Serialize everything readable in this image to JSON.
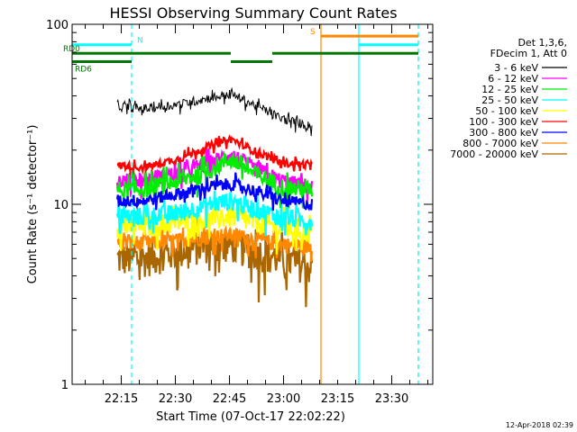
{
  "chart_data": {
    "type": "line",
    "title": "HESSI Observing Summary Count Rates",
    "xlabel": "Start Time (07-Oct-17 22:02:22)",
    "ylabel": "Count Rate (s⁻¹ detector⁻¹)",
    "yscale": "log",
    "ylim": [
      1,
      100
    ],
    "xlim_minutes": [
      0,
      100
    ],
    "ytick_labels": [
      "1",
      "10",
      "100"
    ],
    "xtick_labels": [
      "22:15",
      "22:30",
      "22:45",
      "23:00",
      "23:15",
      "23:30"
    ],
    "xtick_minutes": [
      13.63,
      28.63,
      43.63,
      58.63,
      73.63,
      88.63
    ],
    "data_start_minute": 12.5,
    "data_end_minute": 66.5,
    "legend_header": [
      "Det 1,3,6,",
      "FDecim 1, Att 0"
    ],
    "series": [
      {
        "name": "3 - 6 keV",
        "color": "#000000",
        "x": [
          12.5,
          20,
          30,
          38,
          44,
          50,
          58,
          66.5
        ],
        "y": [
          35,
          34,
          36,
          39,
          41,
          36,
          30,
          27
        ]
      },
      {
        "name": "6 - 12 keV",
        "color": "#ff00ff",
        "x": [
          12.5,
          20,
          30,
          38,
          44,
          50,
          58,
          66.5
        ],
        "y": [
          13.5,
          13.8,
          15,
          17,
          19,
          16,
          13.5,
          12.5
        ]
      },
      {
        "name": "12 - 25 keV",
        "color": "#00ee00",
        "x": [
          12.5,
          20,
          30,
          38,
          44,
          50,
          58,
          66.5
        ],
        "y": [
          12,
          12.2,
          13.5,
          15.5,
          18,
          15,
          12.5,
          12
        ]
      },
      {
        "name": "25 - 50 keV",
        "color": "#00ffff",
        "x": [
          12.5,
          20,
          30,
          38,
          44,
          50,
          58,
          66.5
        ],
        "y": [
          8.5,
          8.6,
          9,
          10,
          10.5,
          9.5,
          8.5,
          8
        ]
      },
      {
        "name": "50 - 100 keV",
        "color": "#ffff00",
        "x": [
          12.5,
          20,
          30,
          38,
          44,
          50,
          58,
          66.5
        ],
        "y": [
          7.5,
          7.5,
          8,
          8.3,
          8.6,
          8,
          7.5,
          7
        ]
      },
      {
        "name": "100 - 300 keV",
        "color": "#ff0000",
        "x": [
          12.5,
          20,
          30,
          38,
          44,
          50,
          58,
          66.5
        ],
        "y": [
          16.5,
          16,
          18,
          21,
          23,
          20,
          17,
          16.5
        ]
      },
      {
        "name": "300 - 800 keV",
        "color": "#0000ff",
        "x": [
          12.5,
          20,
          30,
          38,
          44,
          50,
          58,
          66.5
        ],
        "y": [
          10.5,
          10.5,
          11.5,
          12.5,
          13,
          12,
          10.5,
          10
        ]
      },
      {
        "name": "800 - 7000 keV",
        "color": "#ff8800",
        "x": [
          12.5,
          20,
          30,
          38,
          44,
          50,
          58,
          66.5
        ],
        "y": [
          6.2,
          6.1,
          6.3,
          6.6,
          6.8,
          6.4,
          6,
          5.8
        ]
      },
      {
        "name": "7000 - 20000 keV",
        "color": "#aa6600",
        "x": [
          12.5,
          20,
          30,
          38,
          44,
          50,
          58,
          66.5
        ],
        "y": [
          5,
          5,
          5.5,
          6,
          6,
          5.5,
          5,
          4.5
        ]
      }
    ],
    "flags": [
      {
        "label": "N",
        "color": "#00ffff",
        "y": 77,
        "segments": [
          [
            0,
            16.5
          ],
          [
            79.5,
            96
          ]
        ]
      },
      {
        "label": "S",
        "color": "#ff8800",
        "y": 86,
        "segments": [
          [
            69,
            96
          ]
        ]
      },
      {
        "label": "RD0",
        "color": "#007700",
        "y": 69,
        "segments": [
          [
            0,
            44
          ],
          [
            55.5,
            96
          ]
        ]
      },
      {
        "label": "RD6",
        "color": "#007700",
        "y": 62,
        "segments": [
          [
            0,
            16.5
          ],
          [
            44,
            55.5
          ]
        ]
      }
    ],
    "vertical_lines": [
      {
        "minute": 16.5,
        "color": "#00ffff",
        "dashed": true
      },
      {
        "minute": 69,
        "color": "#ff8800",
        "dashed": false
      },
      {
        "minute": 79.5,
        "color": "#00ffff",
        "dashed": false
      },
      {
        "minute": 96,
        "color": "#ff8800",
        "dashed": true
      },
      {
        "minute": 96,
        "color": "#00ffff",
        "dashed": true
      }
    ]
  },
  "footer": {
    "timestamp": "12-Apr-2018 02:39"
  }
}
